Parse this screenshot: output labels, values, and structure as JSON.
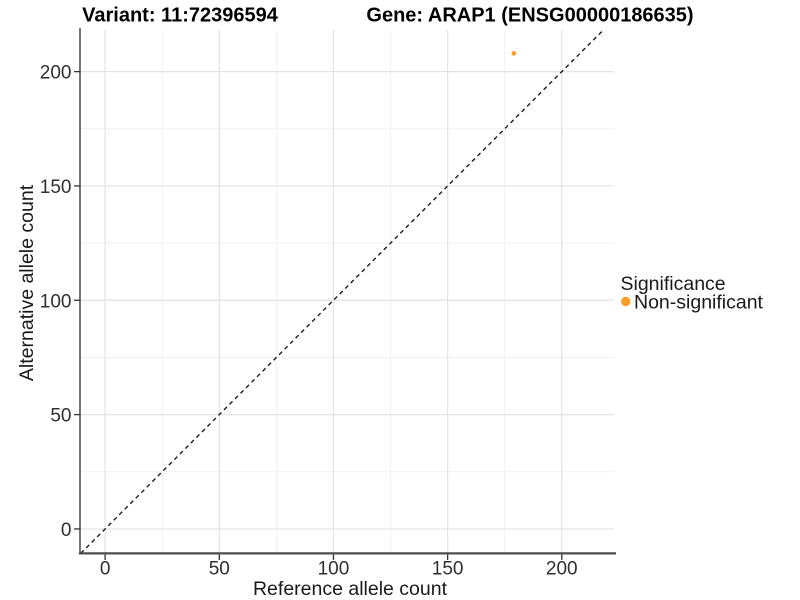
{
  "header": {
    "variant_title": "Variant: 11:72396594",
    "gene_title": "Gene: ARAP1 (ENSG00000186635)"
  },
  "chart_data": {
    "type": "scatter",
    "title_left": "Variant: 11:72396594",
    "title_right": "Gene: ARAP1 (ENSG00000186635)",
    "xlabel": "Reference allele count",
    "ylabel": "Alternative allele count",
    "xlim": [
      -11,
      223
    ],
    "ylim": [
      -10.7,
      218.2
    ],
    "x_ticks": [
      0,
      50,
      100,
      150,
      200
    ],
    "y_ticks": [
      0,
      50,
      100,
      150,
      200
    ],
    "x_minor_ticks": [
      25,
      75,
      125,
      175
    ],
    "y_minor_ticks": [
      25,
      75,
      125,
      175
    ],
    "grid": "major+minor, light gray on white",
    "points": [
      {
        "x": 179,
        "y": 208,
        "series": "Non-significant",
        "color": "#FB9E2B",
        "radius": 2.3
      }
    ],
    "reference_line": {
      "type": "identity y=x",
      "style": "dashed",
      "color": "#1c1c1c"
    },
    "legend": {
      "title": "Significance",
      "position": "right",
      "items": [
        {
          "label": "Non-significant",
          "color": "#FB9E2B"
        }
      ]
    },
    "colors": {
      "point_orange": "#FB9E2B",
      "grid_major": "#E3E3E3",
      "grid_minor": "#F1F1F1",
      "axis_line_x": "#4D4D4D",
      "axis_line_y": "#1a1a1a",
      "tick_text": "#303030"
    }
  }
}
